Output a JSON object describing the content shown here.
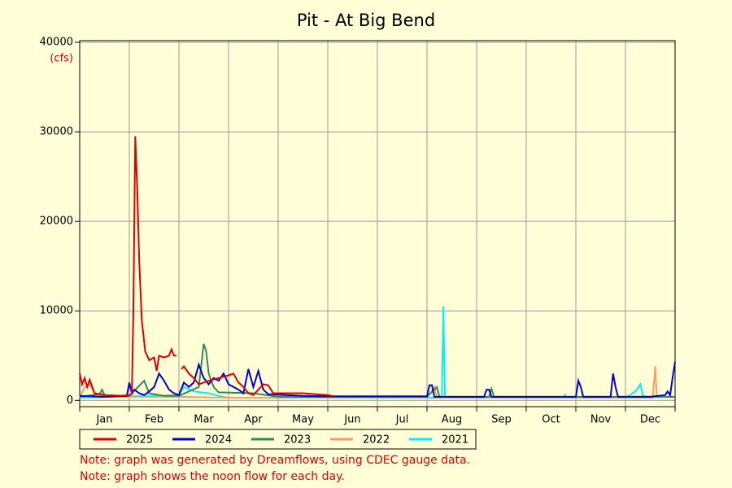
{
  "chart_data": {
    "type": "line",
    "title": "Pit - At Big Bend",
    "y_unit": "(cfs)",
    "categories": [
      "Jan",
      "Feb",
      "Mar",
      "Apr",
      "May",
      "Jun",
      "Jul",
      "Aug",
      "Sep",
      "Oct",
      "Nov",
      "Dec"
    ],
    "xlim": [
      0,
      12
    ],
    "ylim": [
      -700,
      40000
    ],
    "yticks": [
      0,
      10000,
      20000,
      30000,
      40000
    ],
    "grid": true,
    "series": [
      {
        "name": "2025",
        "color": "#e00000",
        "x": [
          0,
          0.05,
          0.1,
          0.15,
          0.2,
          0.3,
          0.5,
          0.8,
          1.0,
          1.05,
          1.08,
          1.12,
          1.16,
          1.2,
          1.25,
          1.32,
          1.4,
          1.5,
          1.55,
          1.6,
          1.7,
          1.8,
          1.85,
          1.9,
          1.95,
          2.0,
          2.05,
          2.1,
          2.2,
          2.3,
          2.4,
          2.5,
          2.6,
          2.8,
          3.0,
          3.1,
          3.2,
          3.3,
          3.4,
          3.5,
          3.6,
          3.7,
          3.8,
          3.9,
          4.0,
          4.5,
          5.0,
          5.1
        ],
        "values": [
          3000,
          1800,
          2500,
          1500,
          2300,
          800,
          600,
          500,
          600,
          700,
          9500,
          29500,
          23500,
          15500,
          9000,
          5500,
          4500,
          4800,
          3300,
          5000,
          4800,
          5000,
          5700,
          5000,
          5000,
          null,
          3500,
          3800,
          3000,
          2500,
          1800,
          2000,
          2200,
          2500,
          2800,
          3000,
          2000,
          1500,
          800,
          600,
          1200,
          1800,
          1700,
          800,
          800,
          800,
          600,
          500
        ]
      },
      {
        "name": "2024",
        "color": "#0000d0",
        "x": [
          0,
          0.5,
          0.95,
          1.0,
          1.05,
          1.1,
          1.2,
          1.3,
          1.4,
          1.5,
          1.6,
          1.7,
          1.8,
          1.9,
          2.0,
          2.1,
          2.2,
          2.3,
          2.4,
          2.5,
          2.6,
          2.7,
          2.8,
          2.9,
          3.0,
          3.1,
          3.2,
          3.3,
          3.4,
          3.5,
          3.6,
          3.7,
          3.8,
          4.5,
          5,
          6,
          7,
          7.05,
          7.1,
          7.15,
          8.15,
          8.2,
          8.25,
          8.3,
          9,
          10,
          10.05,
          10.1,
          10.15,
          10.7,
          10.75,
          10.8,
          10.85,
          11.5,
          11.8,
          11.85,
          11.9,
          11.95,
          12
        ],
        "values": [
          500,
          400,
          500,
          2000,
          800,
          1200,
          800,
          600,
          1000,
          1500,
          3000,
          2200,
          1200,
          800,
          600,
          2000,
          1500,
          2000,
          4000,
          2500,
          1800,
          2500,
          2200,
          3000,
          1800,
          1500,
          1200,
          800,
          3500,
          1500,
          3300,
          1200,
          700,
          500,
          450,
          450,
          450,
          1700,
          1700,
          400,
          400,
          1200,
          1200,
          400,
          400,
          400,
          2200,
          1500,
          400,
          400,
          3000,
          1500,
          400,
          400,
          600,
          1000,
          600,
          2500,
          4300
        ]
      },
      {
        "name": "2023",
        "color": "#2e8b57",
        "x": [
          0,
          0.4,
          0.45,
          0.5,
          1.0,
          1.3,
          1.4,
          1.7,
          2.0,
          2.4,
          2.5,
          2.55,
          2.6,
          2.7,
          2.8,
          3.5,
          4.0,
          5,
          7,
          7.2,
          7.25,
          8.25,
          8.3,
          8.35,
          12
        ],
        "values": [
          400,
          700,
          1200,
          600,
          500,
          2200,
          800,
          500,
          500,
          1500,
          6300,
          5500,
          3000,
          1500,
          900,
          800,
          400,
          400,
          400,
          1500,
          400,
          400,
          1300,
          400,
          400
        ]
      },
      {
        "name": "2022",
        "color": "#f4a060",
        "x": [
          0,
          0.1,
          0.2,
          0.3,
          0.5,
          1,
          2,
          3,
          5,
          7,
          7.15,
          7.2,
          11,
          11.55,
          11.6,
          11.63,
          12
        ],
        "values": [
          300,
          1500,
          1800,
          800,
          400,
          400,
          400,
          300,
          300,
          350,
          1500,
          300,
          300,
          300,
          3800,
          400,
          400
        ]
      },
      {
        "name": "2021",
        "color": "#00eeff",
        "x": [
          0,
          2.0,
          2.1,
          2.3,
          2.6,
          2.8,
          3,
          7.3,
          7.33,
          7.36,
          8.5,
          9.75,
          9.78,
          9.8,
          11,
          11.2,
          11.3,
          11.35,
          11.5
        ],
        "values": [
          300,
          600,
          1500,
          1000,
          800,
          500,
          300,
          300,
          10500,
          400,
          300,
          300,
          600,
          300,
          300,
          1000,
          1800,
          500,
          300
        ]
      }
    ],
    "notes": [
      "Note: graph was generated by Dreamflows, using CDEC gauge data.",
      "Note: graph shows the noon flow for each day."
    ]
  }
}
